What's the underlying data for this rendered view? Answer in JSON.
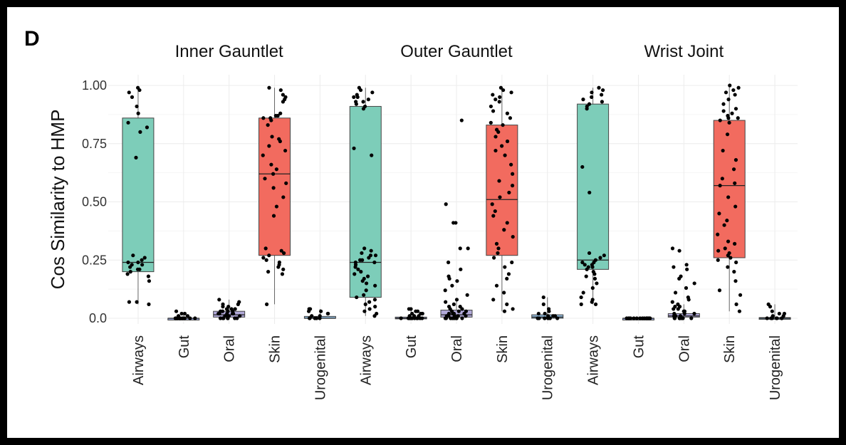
{
  "panel_label": "D",
  "chart_data": {
    "type": "boxplot",
    "ylabel": "Cos Similarity to HMP",
    "xlabel": "",
    "ylim": [
      0,
      1
    ],
    "yticks": [
      0.0,
      0.25,
      0.5,
      0.75,
      1.0
    ],
    "ytick_labels": [
      "0.0",
      "0.25",
      "0.50",
      "0.75",
      "1.00"
    ],
    "grid": true,
    "categories": [
      "Airways",
      "Gut",
      "Oral",
      "Skin",
      "Urogenital"
    ],
    "colors": {
      "Airways": "#7dcdb9",
      "Gut": "#9aa6d6",
      "Oral": "#b1a9d9",
      "Skin": "#f26b5f",
      "Urogenital": "#8fb7d9"
    },
    "facets": [
      {
        "title": "Inner Gauntlet",
        "boxes": [
          {
            "category": "Airways",
            "whisker_low": 0.06,
            "q1": 0.2,
            "median": 0.24,
            "q3": 0.86,
            "whisker_high": 0.99,
            "points": [
              0.99,
              0.98,
              0.97,
              0.95,
              0.91,
              0.88,
              0.84,
              0.82,
              0.8,
              0.69,
              0.27,
              0.26,
              0.25,
              0.24,
              0.24,
              0.23,
              0.23,
              0.22,
              0.21,
              0.21,
              0.2,
              0.19,
              0.18,
              0.16,
              0.07,
              0.07,
              0.06
            ]
          },
          {
            "category": "Gut",
            "whisker_low": 0.0,
            "q1": 0.0,
            "median": 0.0,
            "q3": 0.0,
            "whisker_high": 0.02,
            "points": [
              0.03,
              0.02,
              0.02,
              0.01,
              0.01,
              0.0,
              0.0,
              0.0,
              0.0,
              0.0,
              0.0,
              0.0,
              0.0,
              0.0,
              0.0
            ]
          },
          {
            "category": "Oral",
            "whisker_low": 0.0,
            "q1": 0.005,
            "median": 0.015,
            "q3": 0.03,
            "whisker_high": 0.08,
            "points": [
              0.08,
              0.07,
              0.06,
              0.06,
              0.05,
              0.05,
              0.04,
              0.04,
              0.04,
              0.03,
              0.03,
              0.03,
              0.03,
              0.02,
              0.02,
              0.02,
              0.02,
              0.02,
              0.01,
              0.01,
              0.01,
              0.01,
              0.01,
              0.0,
              0.0,
              0.0,
              0.0,
              0.0,
              0.0,
              0.0
            ]
          },
          {
            "category": "Skin",
            "whisker_low": 0.06,
            "q1": 0.27,
            "median": 0.62,
            "q3": 0.86,
            "whisker_high": 0.99,
            "points": [
              0.99,
              0.98,
              0.96,
              0.95,
              0.94,
              0.93,
              0.88,
              0.87,
              0.87,
              0.86,
              0.86,
              0.85,
              0.83,
              0.78,
              0.77,
              0.76,
              0.74,
              0.72,
              0.7,
              0.66,
              0.64,
              0.62,
              0.6,
              0.58,
              0.56,
              0.52,
              0.48,
              0.44,
              0.3,
              0.29,
              0.28,
              0.27,
              0.26,
              0.25,
              0.24,
              0.23,
              0.22,
              0.21,
              0.2,
              0.19,
              0.06
            ]
          },
          {
            "category": "Urogenital",
            "whisker_low": 0.0,
            "q1": 0.0,
            "median": 0.0,
            "q3": 0.008,
            "whisker_high": 0.04,
            "points": [
              0.04,
              0.04,
              0.03,
              0.03,
              0.02,
              0.02,
              0.01,
              0.01,
              0.0,
              0.0,
              0.0,
              0.0,
              0.0
            ]
          }
        ]
      },
      {
        "title": "Outer Gauntlet",
        "boxes": [
          {
            "category": "Airways",
            "whisker_low": 0.01,
            "q1": 0.09,
            "median": 0.24,
            "q3": 0.91,
            "whisker_high": 0.99,
            "points": [
              0.99,
              0.98,
              0.97,
              0.96,
              0.95,
              0.95,
              0.94,
              0.93,
              0.93,
              0.92,
              0.91,
              0.9,
              0.73,
              0.7,
              0.3,
              0.29,
              0.28,
              0.27,
              0.27,
              0.26,
              0.25,
              0.25,
              0.24,
              0.24,
              0.23,
              0.22,
              0.21,
              0.2,
              0.19,
              0.18,
              0.17,
              0.16,
              0.15,
              0.14,
              0.12,
              0.1,
              0.09,
              0.08,
              0.07,
              0.06,
              0.05,
              0.04,
              0.03,
              0.02,
              0.01
            ]
          },
          {
            "category": "Gut",
            "whisker_low": 0.0,
            "q1": 0.0,
            "median": 0.0,
            "q3": 0.005,
            "whisker_high": 0.04,
            "points": [
              0.04,
              0.04,
              0.03,
              0.03,
              0.02,
              0.02,
              0.02,
              0.01,
              0.01,
              0.01,
              0.0,
              0.0,
              0.0,
              0.0,
              0.0,
              0.0,
              0.0,
              0.0,
              0.0,
              0.0
            ]
          },
          {
            "category": "Oral",
            "whisker_low": 0.0,
            "q1": 0.005,
            "median": 0.015,
            "q3": 0.035,
            "whisker_high": 0.08,
            "points": [
              0.85,
              0.49,
              0.41,
              0.41,
              0.3,
              0.3,
              0.24,
              0.21,
              0.18,
              0.17,
              0.16,
              0.14,
              0.12,
              0.1,
              0.08,
              0.07,
              0.06,
              0.05,
              0.05,
              0.04,
              0.04,
              0.03,
              0.03,
              0.03,
              0.02,
              0.02,
              0.02,
              0.02,
              0.01,
              0.01,
              0.01,
              0.01,
              0.01,
              0.0,
              0.0,
              0.0,
              0.0,
              0.0,
              0.0,
              0.0,
              0.0
            ]
          },
          {
            "category": "Skin",
            "whisker_low": 0.03,
            "q1": 0.27,
            "median": 0.51,
            "q3": 0.83,
            "whisker_high": 0.99,
            "points": [
              0.99,
              0.98,
              0.97,
              0.96,
              0.95,
              0.94,
              0.93,
              0.91,
              0.89,
              0.88,
              0.86,
              0.84,
              0.83,
              0.81,
              0.8,
              0.78,
              0.76,
              0.74,
              0.72,
              0.7,
              0.66,
              0.62,
              0.59,
              0.57,
              0.54,
              0.52,
              0.49,
              0.46,
              0.44,
              0.41,
              0.38,
              0.35,
              0.32,
              0.3,
              0.28,
              0.26,
              0.24,
              0.22,
              0.19,
              0.17,
              0.14,
              0.11,
              0.08,
              0.06,
              0.04,
              0.03
            ]
          },
          {
            "category": "Urogenital",
            "whisker_low": 0.0,
            "q1": 0.0,
            "median": 0.005,
            "q3": 0.015,
            "whisker_high": 0.09,
            "points": [
              0.09,
              0.06,
              0.04,
              0.03,
              0.02,
              0.02,
              0.01,
              0.01,
              0.01,
              0.0,
              0.0,
              0.0,
              0.0,
              0.0,
              0.0,
              0.0
            ]
          }
        ]
      },
      {
        "title": "Wrist Joint",
        "boxes": [
          {
            "category": "Airways",
            "whisker_low": 0.06,
            "q1": 0.21,
            "median": 0.25,
            "q3": 0.92,
            "whisker_high": 0.99,
            "points": [
              0.99,
              0.98,
              0.97,
              0.96,
              0.95,
              0.94,
              0.93,
              0.92,
              0.91,
              0.9,
              0.65,
              0.54,
              0.28,
              0.27,
              0.26,
              0.25,
              0.24,
              0.24,
              0.23,
              0.23,
              0.22,
              0.22,
              0.21,
              0.2,
              0.19,
              0.18,
              0.17,
              0.15,
              0.13,
              0.11,
              0.09,
              0.08,
              0.07,
              0.06,
              0.06
            ]
          },
          {
            "category": "Gut",
            "whisker_low": 0.0,
            "q1": 0.0,
            "median": 0.0,
            "q3": 0.0,
            "whisker_high": 0.0,
            "points": [
              0.0,
              0.0,
              0.0,
              0.0,
              0.0,
              0.0,
              0.0,
              0.0,
              0.0,
              0.0,
              0.0,
              0.0,
              0.0,
              0.0,
              0.0
            ]
          },
          {
            "category": "Oral",
            "whisker_low": 0.0,
            "q1": 0.005,
            "median": 0.01,
            "q3": 0.02,
            "whisker_high": 0.06,
            "points": [
              0.3,
              0.29,
              0.23,
              0.22,
              0.21,
              0.18,
              0.17,
              0.15,
              0.13,
              0.11,
              0.09,
              0.08,
              0.07,
              0.06,
              0.05,
              0.05,
              0.04,
              0.04,
              0.03,
              0.03,
              0.02,
              0.02,
              0.02,
              0.01,
              0.01,
              0.01,
              0.01,
              0.0,
              0.0,
              0.0,
              0.0,
              0.0,
              0.0,
              0.0,
              0.0
            ]
          },
          {
            "category": "Skin",
            "whisker_low": 0.03,
            "q1": 0.26,
            "median": 0.57,
            "q3": 0.85,
            "whisker_high": 1.0,
            "points": [
              1.0,
              0.99,
              0.98,
              0.97,
              0.96,
              0.94,
              0.92,
              0.9,
              0.89,
              0.88,
              0.87,
              0.86,
              0.86,
              0.85,
              0.84,
              0.79,
              0.72,
              0.68,
              0.64,
              0.6,
              0.58,
              0.57,
              0.52,
              0.48,
              0.45,
              0.42,
              0.4,
              0.36,
              0.33,
              0.32,
              0.3,
              0.29,
              0.28,
              0.27,
              0.26,
              0.25,
              0.24,
              0.22,
              0.2,
              0.16,
              0.12,
              0.1,
              0.06,
              0.03
            ]
          },
          {
            "category": "Urogenital",
            "whisker_low": 0.0,
            "q1": 0.0,
            "median": 0.0,
            "q3": 0.003,
            "whisker_high": 0.06,
            "points": [
              0.06,
              0.05,
              0.03,
              0.02,
              0.02,
              0.01,
              0.01,
              0.0,
              0.0,
              0.0,
              0.0,
              0.0,
              0.0,
              0.0
            ]
          }
        ]
      }
    ]
  }
}
